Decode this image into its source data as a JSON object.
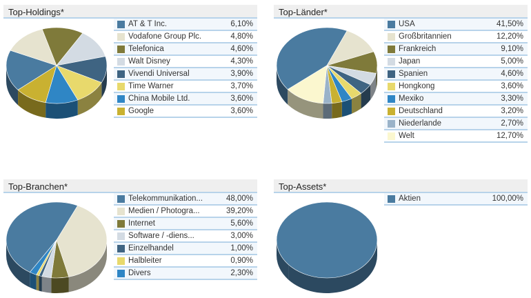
{
  "chart_data": [
    {
      "type": "pie",
      "title": "Top-Holdings*",
      "start_angle": 230,
      "categories": [
        "AT & T Inc.",
        "Vodafone Group Plc.",
        "Telefonica",
        "Walt Disney",
        "Vivendi Universal",
        "Time Warner",
        "China Mobile Ltd.",
        "Google"
      ],
      "values": [
        6.1,
        4.8,
        4.6,
        4.3,
        3.9,
        3.7,
        3.6,
        3.6
      ],
      "labels": [
        "6,10%",
        "4,80%",
        "4,60%",
        "4,30%",
        "3,90%",
        "3,70%",
        "3,60%",
        "3,60%"
      ],
      "colors": [
        "#4a7ba0",
        "#e6e3cf",
        "#7f7a3a",
        "#d3dbe3",
        "#3f6482",
        "#e8d96c",
        "#2f86c5",
        "#c9b131"
      ]
    },
    {
      "type": "pie",
      "title": "Top-Länder*",
      "start_angle": 231,
      "categories": [
        "USA",
        "Großbritannien",
        "Frankreich",
        "Japan",
        "Spanien",
        "Hongkong",
        "Mexiko",
        "Deutschland",
        "Niederlande",
        "Welt"
      ],
      "values": [
        41.5,
        12.2,
        9.1,
        5.0,
        4.6,
        3.6,
        3.3,
        3.2,
        2.7,
        12.7
      ],
      "labels": [
        "41,50%",
        "12,20%",
        "9,10%",
        "5,00%",
        "4,60%",
        "3,60%",
        "3,30%",
        "3,20%",
        "2,70%",
        "12,70%"
      ],
      "colors": [
        "#4a7ba0",
        "#e6e3cf",
        "#7f7a3a",
        "#d3dbe3",
        "#3f6482",
        "#e8d96c",
        "#2f86c5",
        "#c9b131",
        "#9ab3c9",
        "#fbf7cf"
      ]
    },
    {
      "type": "pie",
      "title": "Top-Branchen*",
      "start_angle": 212,
      "categories": [
        "Telekommunikation...",
        "Medien / Photogra...",
        "Internet",
        "Software / -diens...",
        "Einzelhandel",
        "Halbleiter",
        "Divers"
      ],
      "values": [
        48.0,
        39.2,
        5.6,
        3.0,
        1.0,
        0.9,
        2.3
      ],
      "labels": [
        "48,00%",
        "39,20%",
        "5,60%",
        "3,00%",
        "1,00%",
        "0,90%",
        "2,30%"
      ],
      "colors": [
        "#4a7ba0",
        "#e6e3cf",
        "#7f7a3a",
        "#d3dbe3",
        "#3f6482",
        "#e8d96c",
        "#2f86c5"
      ]
    },
    {
      "type": "pie",
      "title": "Top-Assets*",
      "start_angle": 230,
      "categories": [
        "Aktien"
      ],
      "values": [
        100.0
      ],
      "labels": [
        "100,00%"
      ],
      "colors": [
        "#4a7ba0"
      ]
    }
  ]
}
